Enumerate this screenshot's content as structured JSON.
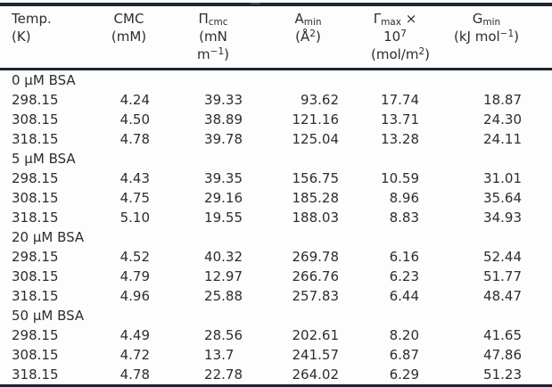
{
  "page": {
    "background": "#fdfdfd",
    "rule_color": "#1d2636",
    "text_color": "#2d2d2d"
  },
  "table": {
    "columns": [
      {
        "name": "temp",
        "label_html": "Temp.",
        "unit_html": "(K)"
      },
      {
        "name": "cmc",
        "label_html": "CMC",
        "unit_html": "(mM)"
      },
      {
        "name": "pi-cmc",
        "label_html": "Π<sub>cmc</sub>",
        "unit_html": "(mN m<sup>−1</sup>)"
      },
      {
        "name": "a-min",
        "label_html": "A<sub>min</sub>",
        "unit_html": "(Å<sup>2</sup>)"
      },
      {
        "name": "gamma-max",
        "label_html": "Γ<sub>max</sub> × 10<sup>7</sup>",
        "unit_html": "(mol/m<sup>2</sup>)"
      },
      {
        "name": "g-min",
        "label_html": "G<sub>min</sub>",
        "unit_html": "(kJ mol<sup>−1</sup>)"
      }
    ],
    "sections": [
      {
        "group": "0 μM BSA",
        "rows": [
          [
            "298.15",
            "4.24",
            "39.33",
            "93.62",
            "17.74",
            "18.87"
          ],
          [
            "308.15",
            "4.50",
            "38.89",
            "121.16",
            "13.71",
            "24.30"
          ],
          [
            "318.15",
            "4.78",
            "39.78",
            "125.04",
            "13.28",
            "24.11"
          ]
        ]
      },
      {
        "group": "5 μM BSA",
        "rows": [
          [
            "298.15",
            "4.43",
            "39.35",
            "156.75",
            "10.59",
            "31.01"
          ],
          [
            "308.15",
            "4.75",
            "29.16",
            "185.28",
            "8.96",
            "35.64"
          ],
          [
            "318.15",
            "5.10",
            "19.55",
            "188.03",
            "8.83",
            "34.93"
          ]
        ]
      },
      {
        "group": "20 μM BSA",
        "rows": [
          [
            "298.15",
            "4.52",
            "40.32",
            "269.78",
            "6.16",
            "52.44"
          ],
          [
            "308.15",
            "4.79",
            "12.97",
            "266.76",
            "6.23",
            "51.77"
          ],
          [
            "318.15",
            "4.96",
            "25.88",
            "257.83",
            "6.44",
            "48.47"
          ]
        ]
      },
      {
        "group": "50 μM BSA",
        "rows": [
          [
            "298.15",
            "4.49",
            "28.56",
            "202.61",
            "8.20",
            "41.65"
          ],
          [
            "308.15",
            "4.72",
            "13.7",
            "241.57",
            "6.87",
            "47.86"
          ],
          [
            "318.15",
            "4.78",
            "22.78",
            "264.02",
            "6.29",
            "51.23"
          ]
        ]
      }
    ]
  }
}
